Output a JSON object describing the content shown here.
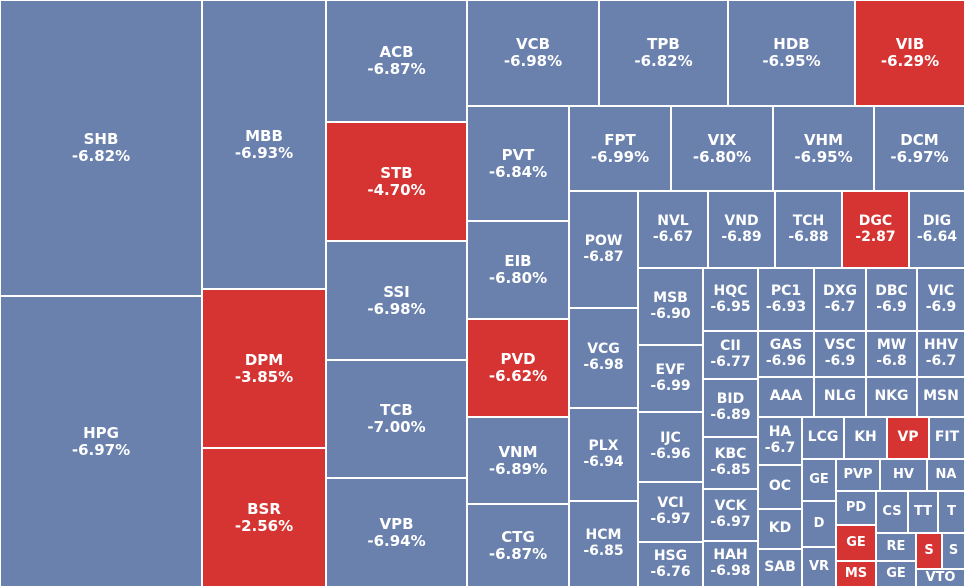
{
  "colors": {
    "decrease": "#6a80ad",
    "highlight": "#d63333"
  },
  "chart_data": {
    "type": "treemap",
    "tiles": [
      {
        "symbol": "SHB",
        "change": "-6.82%",
        "color": "decrease"
      },
      {
        "symbol": "HPG",
        "change": "-6.97%",
        "color": "decrease"
      },
      {
        "symbol": "MBB",
        "change": "-6.93%",
        "color": "decrease"
      },
      {
        "symbol": "DPM",
        "change": "-3.85%",
        "color": "highlight"
      },
      {
        "symbol": "BSR",
        "change": "-2.56%",
        "color": "highlight"
      },
      {
        "symbol": "ACB",
        "change": "-6.87%",
        "color": "decrease"
      },
      {
        "symbol": "STB",
        "change": "-4.70%",
        "color": "highlight"
      },
      {
        "symbol": "SSI",
        "change": "-6.98%",
        "color": "decrease"
      },
      {
        "symbol": "TCB",
        "change": "-7.00%",
        "color": "decrease"
      },
      {
        "symbol": "VPB",
        "change": "-6.94%",
        "color": "decrease"
      },
      {
        "symbol": "VCB",
        "change": "-6.98%",
        "color": "decrease"
      },
      {
        "symbol": "TPB",
        "change": "-6.82%",
        "color": "decrease"
      },
      {
        "symbol": "HDB",
        "change": "-6.95%",
        "color": "decrease"
      },
      {
        "symbol": "VIB",
        "change": "-6.29%",
        "color": "highlight"
      },
      {
        "symbol": "PVT",
        "change": "-6.84%",
        "color": "decrease"
      },
      {
        "symbol": "EIB",
        "change": "-6.80%",
        "color": "decrease"
      },
      {
        "symbol": "PVD",
        "change": "-6.62%",
        "color": "highlight"
      },
      {
        "symbol": "VNM",
        "change": "-6.89%",
        "color": "decrease"
      },
      {
        "symbol": "CTG",
        "change": "-6.87%",
        "color": "decrease"
      },
      {
        "symbol": "FPT",
        "change": "-6.99%",
        "color": "decrease"
      },
      {
        "symbol": "VIX",
        "change": "-6.80%",
        "color": "decrease"
      },
      {
        "symbol": "VHM",
        "change": "-6.95%",
        "color": "decrease"
      },
      {
        "symbol": "DCM",
        "change": "-6.97%",
        "color": "decrease"
      },
      {
        "symbol": "POW",
        "change": "-6.87",
        "color": "decrease"
      },
      {
        "symbol": "VCG",
        "change": "-6.98",
        "color": "decrease"
      },
      {
        "symbol": "PLX",
        "change": "-6.94",
        "color": "decrease"
      },
      {
        "symbol": "HCM",
        "change": "-6.85",
        "color": "decrease"
      },
      {
        "symbol": "NVL",
        "change": "-6.67",
        "color": "decrease"
      },
      {
        "symbol": "VND",
        "change": "-6.89",
        "color": "decrease"
      },
      {
        "symbol": "TCH",
        "change": "-6.88",
        "color": "decrease"
      },
      {
        "symbol": "DGC",
        "change": "-2.87",
        "color": "highlight"
      },
      {
        "symbol": "DIG",
        "change": "-6.64",
        "color": "decrease"
      },
      {
        "symbol": "MSB",
        "change": "-6.90",
        "color": "decrease"
      },
      {
        "symbol": "EVF",
        "change": "-6.99",
        "color": "decrease"
      },
      {
        "symbol": "IJC",
        "change": "-6.96",
        "color": "decrease"
      },
      {
        "symbol": "VCI",
        "change": "-6.97",
        "color": "decrease"
      },
      {
        "symbol": "HSG",
        "change": "-6.76",
        "color": "decrease"
      },
      {
        "symbol": "HQC",
        "change": "-6.95",
        "color": "decrease"
      },
      {
        "symbol": "PC1",
        "change": "-6.93",
        "color": "decrease"
      },
      {
        "symbol": "DXG",
        "change": "-6.7",
        "color": "decrease"
      },
      {
        "symbol": "DBC",
        "change": "-6.9",
        "color": "decrease"
      },
      {
        "symbol": "VIC",
        "change": "-6.9",
        "color": "decrease"
      },
      {
        "symbol": "CII",
        "change": "-6.77",
        "color": "decrease"
      },
      {
        "symbol": "BID",
        "change": "-6.89",
        "color": "decrease"
      },
      {
        "symbol": "KBC",
        "change": "-6.85",
        "color": "decrease"
      },
      {
        "symbol": "VCK",
        "change": "-6.97",
        "color": "decrease"
      },
      {
        "symbol": "HAH",
        "change": "-6.98",
        "color": "decrease"
      },
      {
        "symbol": "GAS",
        "change": "-6.96",
        "color": "decrease"
      },
      {
        "symbol": "VSC",
        "change": "-6.9",
        "color": "decrease"
      },
      {
        "symbol": "MW",
        "change": "-6.8",
        "color": "decrease"
      },
      {
        "symbol": "HHV",
        "change": "-6.7",
        "color": "decrease"
      },
      {
        "symbol": "AAA",
        "change": "",
        "color": "decrease"
      },
      {
        "symbol": "NLG",
        "change": "",
        "color": "decrease"
      },
      {
        "symbol": "NKG",
        "change": "",
        "color": "decrease"
      },
      {
        "symbol": "MSN",
        "change": "",
        "color": "decrease"
      },
      {
        "symbol": "HA",
        "change": "-6.7",
        "color": "decrease"
      },
      {
        "symbol": "LCG",
        "change": "",
        "color": "decrease"
      },
      {
        "symbol": "KH",
        "change": "",
        "color": "decrease"
      },
      {
        "symbol": "VP",
        "change": "",
        "color": "highlight"
      },
      {
        "symbol": "FIT",
        "change": "",
        "color": "decrease"
      },
      {
        "symbol": "OC",
        "change": "",
        "color": "decrease"
      },
      {
        "symbol": "KD",
        "change": "",
        "color": "decrease"
      },
      {
        "symbol": "SAB",
        "change": "",
        "color": "decrease"
      },
      {
        "symbol": "GE",
        "change": "",
        "color": "decrease"
      },
      {
        "symbol": "D",
        "change": "",
        "color": "decrease"
      },
      {
        "symbol": "VR",
        "change": "",
        "color": "decrease"
      },
      {
        "symbol": "PVP",
        "change": "",
        "color": "decrease"
      },
      {
        "symbol": "HV",
        "change": "",
        "color": "decrease"
      },
      {
        "symbol": "NA",
        "change": "",
        "color": "decrease"
      },
      {
        "symbol": "PD",
        "change": "",
        "color": "decrease"
      },
      {
        "symbol": "CS",
        "change": "",
        "color": "decrease"
      },
      {
        "symbol": "TT",
        "change": "",
        "color": "decrease"
      },
      {
        "symbol": "T",
        "change": "",
        "color": "decrease"
      },
      {
        "symbol": "GE",
        "change": "",
        "color": "highlight"
      },
      {
        "symbol": "RE",
        "change": "",
        "color": "decrease"
      },
      {
        "symbol": "S",
        "change": "",
        "color": "highlight"
      },
      {
        "symbol": "S",
        "change": "",
        "color": "decrease"
      },
      {
        "symbol": "MS",
        "change": "",
        "color": "highlight"
      },
      {
        "symbol": "GE",
        "change": "",
        "color": "decrease"
      },
      {
        "symbol": "VTO",
        "change": "",
        "color": "decrease"
      }
    ]
  }
}
